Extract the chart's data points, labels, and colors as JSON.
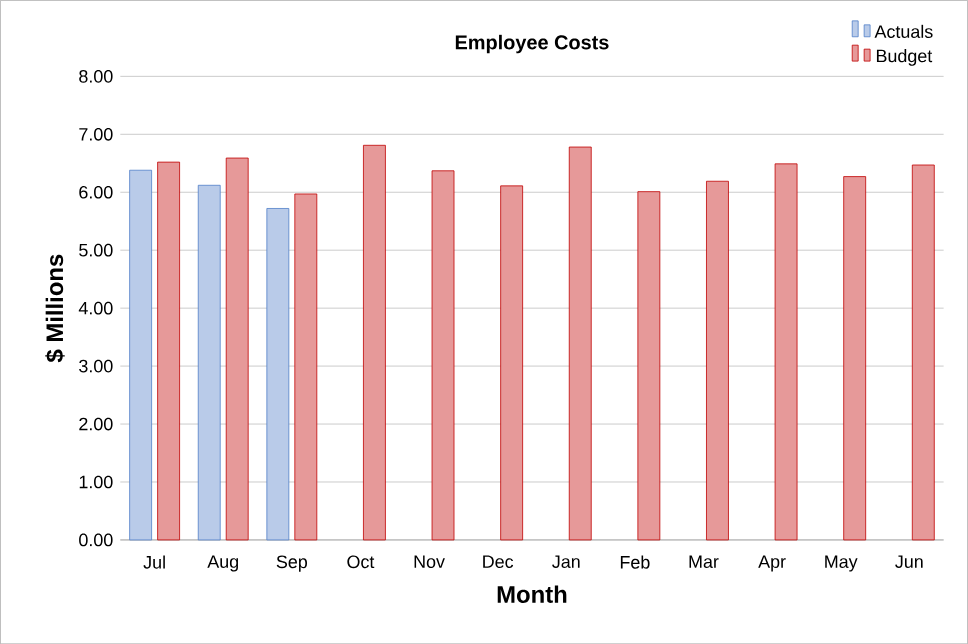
{
  "chart_data": {
    "type": "bar",
    "title": "Employee Costs",
    "xlabel": "Month",
    "ylabel": "$ Millions",
    "categories": [
      "Jul",
      "Aug",
      "Sep",
      "Oct",
      "Nov",
      "Dec",
      "Jan",
      "Feb",
      "Mar",
      "Apr",
      "May",
      "Jun"
    ],
    "series": [
      {
        "name": "Actuals",
        "color": "#4f7ec8",
        "values": [
          6.38,
          6.12,
          5.72,
          null,
          null,
          null,
          null,
          null,
          null,
          null,
          null,
          null
        ]
      },
      {
        "name": "Budget",
        "color": "#c00000",
        "values": [
          6.52,
          6.59,
          5.97,
          6.81,
          6.37,
          6.11,
          6.78,
          6.01,
          6.19,
          6.49,
          6.27,
          6.47
        ]
      }
    ],
    "ylim": [
      0,
      8
    ],
    "yticks": [
      {
        "value": 0,
        "label": "0.00"
      },
      {
        "value": 1,
        "label": "1.00"
      },
      {
        "value": 2,
        "label": "2.00"
      },
      {
        "value": 3,
        "label": "3.00"
      },
      {
        "value": 4,
        "label": "4.00"
      },
      {
        "value": 5,
        "label": "5.00"
      },
      {
        "value": 6,
        "label": "6.00"
      },
      {
        "value": 7,
        "label": "7.00"
      },
      {
        "value": 8,
        "label": "8.00"
      }
    ],
    "grid": "y",
    "legend": "top right"
  }
}
